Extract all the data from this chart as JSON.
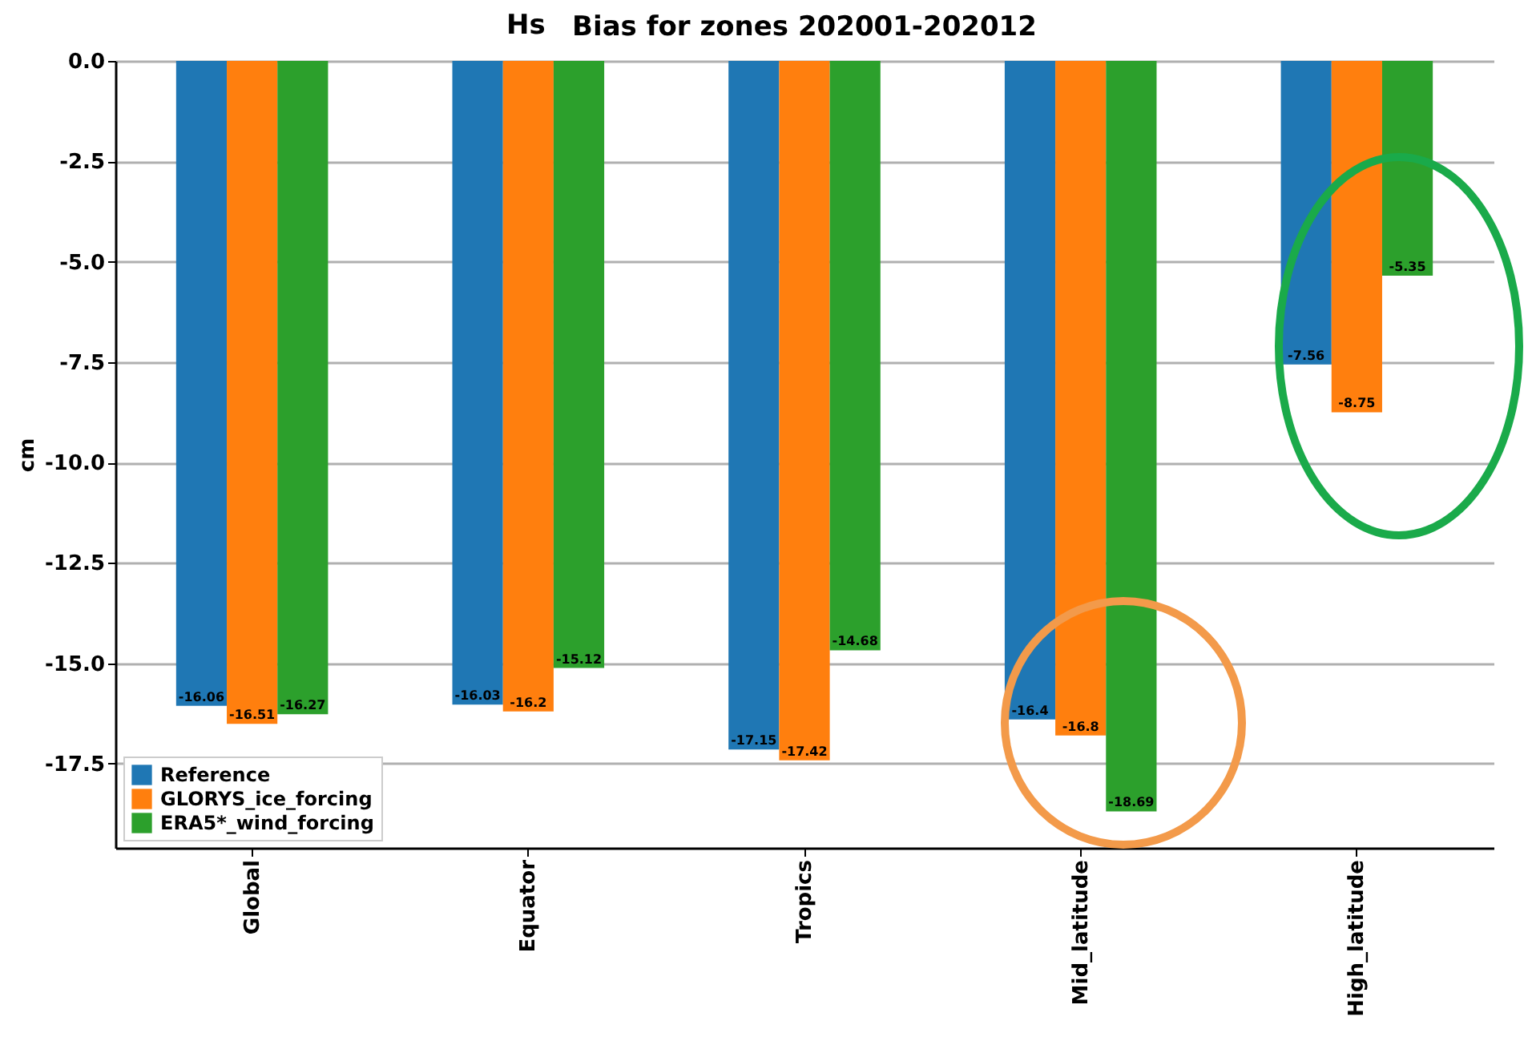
{
  "chart_data": {
    "type": "bar",
    "title": "Bias for zones 202001-202012",
    "ylabel": "cm",
    "annotations": [
      "Hs"
    ],
    "categories": [
      "Global",
      "Equator",
      "Tropics",
      "Mid_latitude",
      "High_latitude"
    ],
    "series": [
      {
        "name": "Reference",
        "color": "#1f77b4",
        "values": [
          -16.06,
          -16.03,
          -17.15,
          -16.4,
          -7.56
        ]
      },
      {
        "name": "GLORYS_ice_forcing",
        "color": "#ff7f0e",
        "values": [
          -16.51,
          -16.2,
          -17.42,
          -16.8,
          -8.75
        ]
      },
      {
        "name": "ERA5*_wind_forcing",
        "color": "#2ca02c",
        "values": [
          -16.27,
          -15.12,
          -14.68,
          -18.69,
          -5.35
        ]
      }
    ],
    "ylim": [
      -19.6,
      0
    ],
    "yticks": [
      {
        "value": 0,
        "label": "0.0"
      },
      -2.5,
      {
        "value": -5,
        "label": "-5.0"
      },
      -7.5,
      {
        "value": -10,
        "label": "-10.0"
      },
      -12.5,
      {
        "value": -15,
        "label": "-15.0"
      },
      -17.5
    ],
    "grid": "y",
    "legend": "bottom left",
    "data_labels": true
  }
}
